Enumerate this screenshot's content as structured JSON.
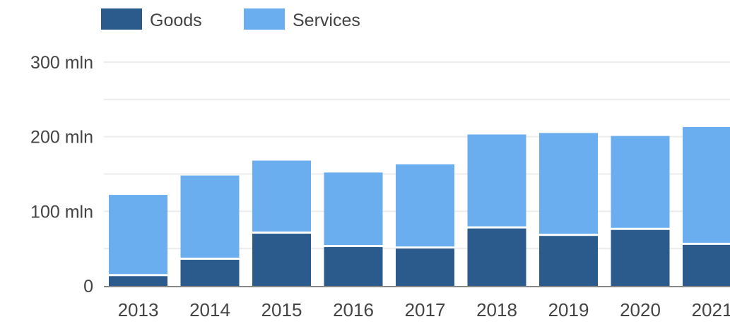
{
  "chart_data": {
    "type": "bar",
    "stacked": true,
    "title": "",
    "xlabel": "",
    "ylabel": "",
    "categories": [
      "2013",
      "2014",
      "2015",
      "2016",
      "2017",
      "2018",
      "2019",
      "2020",
      "2021"
    ],
    "series": [
      {
        "name": "Goods",
        "color": "#2a5b8c",
        "values": [
          13,
          35,
          70,
          52,
          50,
          77,
          67,
          75,
          55
        ]
      },
      {
        "name": "Services",
        "color": "#6aaef0",
        "values": [
          109,
          113,
          98,
          100,
          113,
          126,
          138,
          126,
          158
        ]
      }
    ],
    "ylim": [
      0,
      300
    ],
    "yticks": [
      {
        "value": 0,
        "label": "0"
      },
      {
        "value": 100,
        "label": "100 mln"
      },
      {
        "value": 200,
        "label": "200 mln"
      },
      {
        "value": 300,
        "label": "300 mln"
      }
    ],
    "grid": true,
    "legend_position": "top-left"
  }
}
